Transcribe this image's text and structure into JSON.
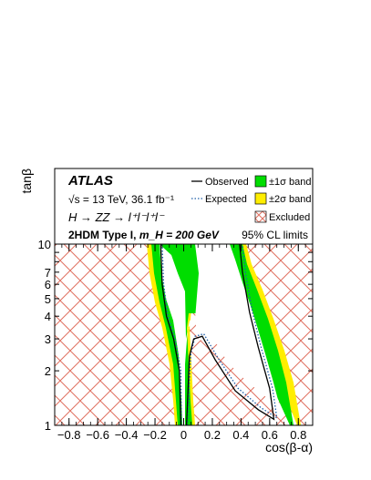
{
  "chart_data": {
    "type": "area",
    "title": "ATLAS",
    "annotations": {
      "energy": "√s = 13 TeV, 36.1 fb⁻¹",
      "process": "H → ZZ → l⁺l⁻l⁺l⁻",
      "model": "2HDM Type I,",
      "mass": "m_H = 200 GeV",
      "cl": "95% CL limits"
    },
    "xlabel": "cos(β-α)",
    "ylabel": "tanβ",
    "xlim": [
      -0.9,
      0.9
    ],
    "ylim": [
      1,
      10
    ],
    "yscale": "log",
    "x_ticks": [
      -0.8,
      -0.6,
      -0.4,
      -0.2,
      0,
      0.2,
      0.4,
      0.6,
      0.8
    ],
    "x_tick_labels": [
      "−0.8",
      "−0.6",
      "−0.4",
      "−0.2",
      "0",
      "0.2",
      "0.4",
      "0.6",
      "0.8"
    ],
    "y_ticks": [
      1,
      2,
      3,
      4,
      5,
      6,
      7,
      10
    ],
    "y_tick_labels": [
      "1",
      "2",
      "3",
      "4",
      "5",
      "6",
      "7",
      "10"
    ],
    "legend": [
      {
        "name": "Observed",
        "style": "solid-line",
        "color": "#000000"
      },
      {
        "name": "Expected",
        "style": "dotted-line",
        "color": "#1f5fa8"
      },
      {
        "name": "±1σ band",
        "style": "box",
        "color": "#00dd00"
      },
      {
        "name": "±2σ band",
        "style": "box",
        "color": "#ffee00"
      },
      {
        "name": "Excluded",
        "style": "hatched",
        "color": "#e07060"
      }
    ],
    "legend_position": "top",
    "colors": {
      "band_1sigma": "#00dd00",
      "band_2sigma": "#ffee00",
      "hatch": "#e07060",
      "observed": "#000000",
      "expected": "#1f5fa8"
    },
    "allowed_region": {
      "left_lobe": [
        [
          -0.14,
          10
        ],
        [
          -0.13,
          6
        ],
        [
          -0.1,
          4
        ],
        [
          -0.05,
          3
        ],
        [
          -0.02,
          2
        ],
        [
          -0.01,
          1
        ]
      ],
      "central_lobe": [
        [
          0.01,
          1
        ],
        [
          0.03,
          2
        ],
        [
          0.06,
          3.4
        ],
        [
          0.14,
          3.4
        ],
        [
          0.26,
          2.2
        ],
        [
          0.44,
          1.6
        ],
        [
          0.6,
          1.35
        ],
        [
          0.72,
          1.05
        ],
        [
          0.64,
          1.6
        ],
        [
          0.55,
          2.6
        ],
        [
          0.48,
          4
        ],
        [
          0.42,
          7
        ],
        [
          0.4,
          10
        ],
        [
          0.16,
          10
        ],
        [
          0.1,
          4
        ],
        [
          0.06,
          2
        ],
        [
          0.03,
          1.4
        ]
      ]
    },
    "observed": {
      "left": [
        [
          -0.16,
          10
        ],
        [
          -0.15,
          6
        ],
        [
          -0.12,
          4
        ],
        [
          -0.07,
          3
        ],
        [
          -0.03,
          2
        ],
        [
          -0.02,
          1
        ]
      ],
      "right": [
        [
          0.02,
          1
        ],
        [
          0.04,
          2.4
        ],
        [
          0.07,
          3.0
        ],
        [
          0.13,
          3.1
        ],
        [
          0.22,
          2.3
        ],
        [
          0.36,
          1.55
        ],
        [
          0.52,
          1.22
        ],
        [
          0.63,
          1.08
        ],
        [
          0.6,
          1.6
        ],
        [
          0.52,
          2.7
        ],
        [
          0.46,
          4.2
        ],
        [
          0.41,
          7
        ],
        [
          0.39,
          10
        ]
      ]
    },
    "expected": {
      "left": [
        [
          -0.15,
          10
        ],
        [
          -0.14,
          6
        ],
        [
          -0.11,
          4
        ],
        [
          -0.06,
          3
        ],
        [
          -0.02,
          2
        ],
        [
          -0.015,
          1
        ]
      ],
      "right": [
        [
          0.025,
          1
        ],
        [
          0.05,
          2.5
        ],
        [
          0.08,
          3.1
        ],
        [
          0.14,
          3.2
        ],
        [
          0.24,
          2.35
        ],
        [
          0.38,
          1.6
        ],
        [
          0.54,
          1.25
        ],
        [
          0.65,
          1.1
        ],
        [
          0.62,
          1.6
        ],
        [
          0.54,
          2.7
        ],
        [
          0.48,
          4.2
        ],
        [
          0.43,
          7
        ],
        [
          0.41,
          10
        ]
      ]
    }
  }
}
